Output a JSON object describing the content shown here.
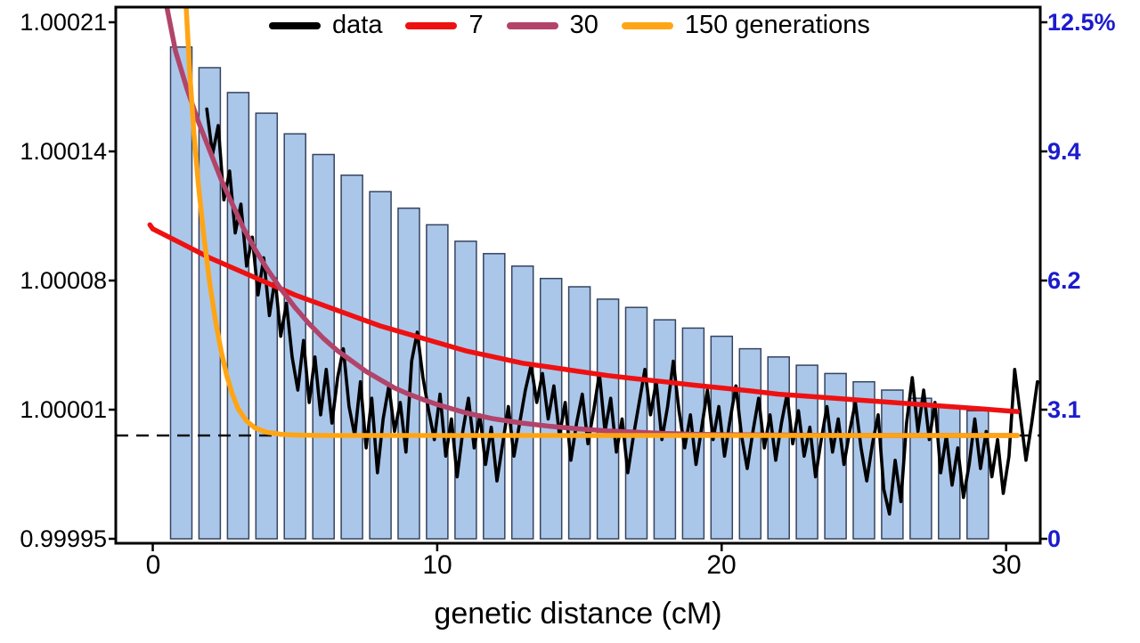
{
  "figure": {
    "xlabel": "genetic distance (cM)"
  },
  "chart_data": {
    "type": "line",
    "title": "",
    "xlabel": "genetic distance (cM)",
    "ylabel": "",
    "x_range": [
      -1.3,
      31.2
    ],
    "x_tick_values": [
      0,
      10,
      20,
      30
    ],
    "x_ticks": [
      "0",
      "10",
      "20",
      "30"
    ],
    "left_axis": {
      "range": [
        0.99995,
        1.00021
      ],
      "ticks": [
        "1.00021",
        "1.00014",
        "1.00008",
        "1.00001",
        "0.99995"
      ]
    },
    "right_axis": {
      "range": [
        0,
        12.5
      ],
      "unit": "%",
      "ticks": [
        "12.5%",
        "9.4",
        "6.2",
        "3.1",
        "0"
      ],
      "color": "#1c1ccd"
    },
    "grid": false,
    "legend_position": "top-center",
    "baseline": {
      "value_pct": 2.5,
      "style": "dashed",
      "color": "#111111"
    },
    "bars": {
      "x_start": 1,
      "x_step": 1,
      "width": 0.75,
      "fill": "#aac7ea",
      "stroke": "#36435f",
      "values": [
        11.9,
        11.4,
        10.8,
        10.3,
        9.8,
        9.3,
        8.8,
        8.4,
        8.0,
        7.6,
        7.2,
        6.9,
        6.6,
        6.3,
        6.1,
        5.8,
        5.6,
        5.3,
        5.1,
        4.9,
        4.6,
        4.4,
        4.2,
        4.0,
        3.8,
        3.6,
        3.4,
        3.2,
        3.1
      ]
    },
    "draw_order": [
      0,
      1,
      2,
      3
    ],
    "series": [
      {
        "name": "data",
        "color": "#000000",
        "width": 3.6,
        "x_start": 1.9,
        "x_step": 0.2,
        "y": [
          10.4,
          9.3,
          10.0,
          8.2,
          8.9,
          7.4,
          8.1,
          6.6,
          7.3,
          5.9,
          6.8,
          5.4,
          6.3,
          4.9,
          5.7,
          4.4,
          3.6,
          4.8,
          3.3,
          4.4,
          3.0,
          4.1,
          2.8,
          3.9,
          4.6,
          3.2,
          2.5,
          3.8,
          2.2,
          3.4,
          1.6,
          2.9,
          3.7,
          2.6,
          3.3,
          2.1,
          4.3,
          5.0,
          3.9,
          3.1,
          2.4,
          3.5,
          2.0,
          2.9,
          1.5,
          2.6,
          3.4,
          2.2,
          3.0,
          1.8,
          2.7,
          1.4,
          2.3,
          3.2,
          2.0,
          2.8,
          3.6,
          4.2,
          3.3,
          4.0,
          2.9,
          3.7,
          2.5,
          3.3,
          1.9,
          2.8,
          3.5,
          2.3,
          3.1,
          4.0,
          2.6,
          3.4,
          2.1,
          2.9,
          1.6,
          2.5,
          3.3,
          4.1,
          3.0,
          3.8,
          2.4,
          3.2,
          4.3,
          3.1,
          2.2,
          3.0,
          1.8,
          2.7,
          3.6,
          2.4,
          3.2,
          2.0,
          2.9,
          3.7,
          2.5,
          1.7,
          2.6,
          3.4,
          2.2,
          3.0,
          1.9,
          2.8,
          3.5,
          2.3,
          3.1,
          2.0,
          2.7,
          1.5,
          2.4,
          3.2,
          2.1,
          2.9,
          1.8,
          2.6,
          3.3,
          2.2,
          1.4,
          2.3,
          3.0,
          1.2,
          0.6,
          1.9,
          0.9,
          2.8,
          3.9,
          2.6,
          3.6,
          2.4,
          3.3,
          1.6,
          2.5,
          1.3,
          2.2,
          1.0,
          1.8,
          2.9,
          1.7,
          2.6,
          1.5,
          2.4,
          1.1,
          2.0,
          4.1,
          3.0,
          1.9,
          2.8,
          3.8
        ]
      },
      {
        "name": "7",
        "color": "#ee1111",
        "width": 5.5,
        "points": [
          [
            -0.1,
            7.6
          ],
          [
            0,
            7.5
          ],
          [
            1,
            7.15
          ],
          [
            2,
            6.8
          ],
          [
            3,
            6.5
          ],
          [
            4,
            6.2
          ],
          [
            5,
            5.9
          ],
          [
            6,
            5.65
          ],
          [
            7,
            5.4
          ],
          [
            8,
            5.15
          ],
          [
            9,
            4.95
          ],
          [
            10,
            4.75
          ],
          [
            11,
            4.55
          ],
          [
            12,
            4.4
          ],
          [
            13,
            4.25
          ],
          [
            14,
            4.15
          ],
          [
            15,
            4.05
          ],
          [
            16,
            3.95
          ],
          [
            17,
            3.87
          ],
          [
            18,
            3.8
          ],
          [
            19,
            3.72
          ],
          [
            20,
            3.65
          ],
          [
            21,
            3.58
          ],
          [
            22,
            3.5
          ],
          [
            23,
            3.45
          ],
          [
            24,
            3.4
          ],
          [
            25,
            3.35
          ],
          [
            26,
            3.3
          ],
          [
            27,
            3.25
          ],
          [
            28,
            3.2
          ],
          [
            29,
            3.15
          ],
          [
            30,
            3.1
          ],
          [
            30.4,
            3.08
          ]
        ]
      },
      {
        "name": "30",
        "color": "#b2446a",
        "width": 5.5,
        "points": [
          [
            0.4,
            13.2
          ],
          [
            0.8,
            11.8
          ],
          [
            1.2,
            10.9
          ],
          [
            1.6,
            10.1
          ],
          [
            2.0,
            9.4
          ],
          [
            2.4,
            8.7
          ],
          [
            2.8,
            8.1
          ],
          [
            3.2,
            7.5
          ],
          [
            3.6,
            7.0
          ],
          [
            4.0,
            6.55
          ],
          [
            4.5,
            6.05
          ],
          [
            5.0,
            5.6
          ],
          [
            5.5,
            5.2
          ],
          [
            6.0,
            4.85
          ],
          [
            6.5,
            4.55
          ],
          [
            7.0,
            4.3
          ],
          [
            7.5,
            4.05
          ],
          [
            8.0,
            3.85
          ],
          [
            8.5,
            3.65
          ],
          [
            9.0,
            3.5
          ],
          [
            9.5,
            3.37
          ],
          [
            10.0,
            3.25
          ],
          [
            11,
            3.05
          ],
          [
            12,
            2.9
          ],
          [
            13,
            2.8
          ],
          [
            14,
            2.72
          ],
          [
            15,
            2.66
          ],
          [
            16,
            2.61
          ],
          [
            17,
            2.58
          ],
          [
            18,
            2.55
          ],
          [
            19,
            2.53
          ],
          [
            20,
            2.52
          ],
          [
            22,
            2.51
          ],
          [
            25,
            2.5
          ],
          [
            28,
            2.5
          ],
          [
            30.4,
            2.5
          ]
        ]
      },
      {
        "name": "150 generations",
        "color": "#ffa515",
        "width": 5.5,
        "points": [
          [
            1.15,
            13.2
          ],
          [
            1.3,
            11.3
          ],
          [
            1.45,
            9.8
          ],
          [
            1.6,
            8.6
          ],
          [
            1.8,
            7.3
          ],
          [
            2.0,
            6.2
          ],
          [
            2.2,
            5.3
          ],
          [
            2.4,
            4.55
          ],
          [
            2.6,
            3.95
          ],
          [
            2.8,
            3.5
          ],
          [
            3.0,
            3.15
          ],
          [
            3.3,
            2.85
          ],
          [
            3.6,
            2.68
          ],
          [
            4.0,
            2.58
          ],
          [
            4.5,
            2.53
          ],
          [
            5.0,
            2.51
          ],
          [
            6,
            2.5
          ],
          [
            8,
            2.5
          ],
          [
            12,
            2.5
          ],
          [
            16,
            2.5
          ],
          [
            20,
            2.5
          ],
          [
            24,
            2.5
          ],
          [
            28,
            2.5
          ],
          [
            30.4,
            2.5
          ]
        ]
      }
    ]
  }
}
